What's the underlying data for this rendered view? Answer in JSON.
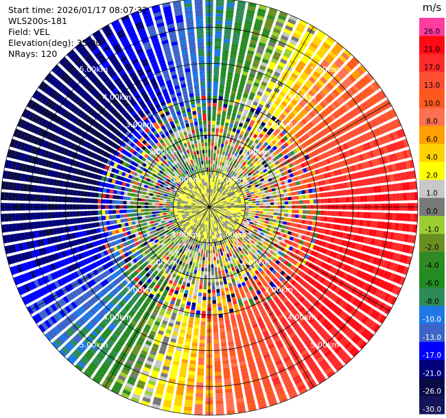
{
  "header": {
    "start_time": "Start time: 2026/01/17 08:07:32",
    "instrument": "WLS200s-181",
    "field": "Field: VEL",
    "elevation": "Elevation(deg): 35.00",
    "nrays": "NRays: 120"
  },
  "chart_data": {
    "type": "heatmap",
    "projection": "polar",
    "n_rays": 120,
    "range_max_km": 5.8,
    "range_ring_labels": [
      "1.00km",
      "2.00km",
      "3.00km",
      "4.00km",
      "5.00km"
    ],
    "range_rings_km": [
      1,
      2,
      3,
      4,
      5
    ],
    "colorbar": {
      "unit": "m/s",
      "tick_labels": [
        "26.0",
        "21.0",
        "17.0",
        "13.0",
        "10.0",
        "8.0",
        "6.0",
        "4.0",
        "2.0",
        "1.0",
        "0.0",
        "-1.0",
        "-2.0",
        "-4.0",
        "-6.0",
        "-8.0",
        "-10.0",
        "-13.0",
        "-17.0",
        "-21.0",
        "-26.0",
        "-30.0"
      ],
      "colors": [
        "#ff3ca0",
        "#ff0a14",
        "#ff2a2a",
        "#ff5033",
        "#ff5a1e",
        "#ff7050",
        "#ffa000",
        "#ffd200",
        "#ffff00",
        "#c8c8c8",
        "#787878",
        "#9acd32",
        "#6b8e23",
        "#2e8b22",
        "#228b22",
        "#2e8b57",
        "#1e78e6",
        "#3c64c8",
        "#0000ff",
        "#00007a",
        "#0a0a46",
        "#14145a"
      ]
    },
    "velocity_pattern": {
      "ring_center_deg": 112,
      "description_note": ""
    }
  }
}
